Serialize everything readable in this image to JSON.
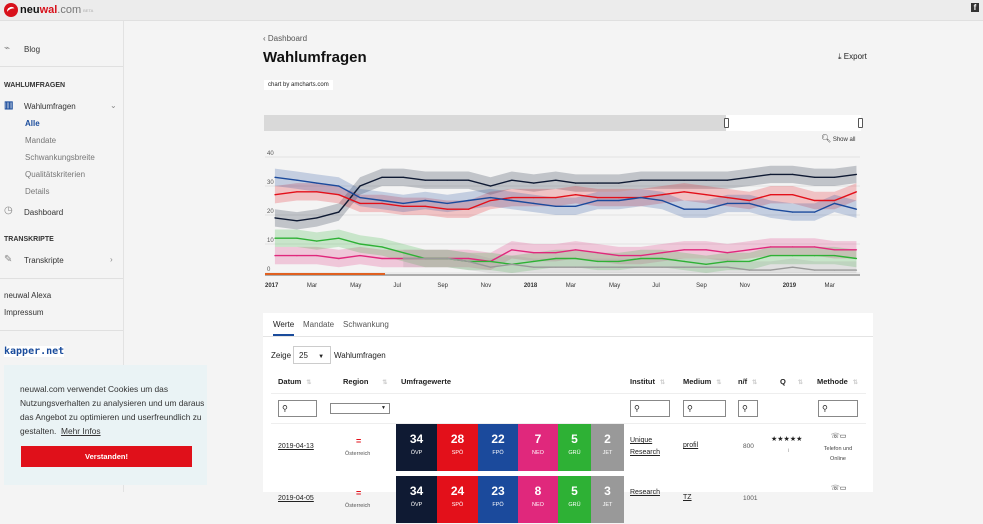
{
  "header": {
    "logo_text_a": "neu",
    "logo_text_b": "wal",
    "logo_text_c": ".com",
    "logo_sup": "BETA",
    "facebook_icon": "f"
  },
  "sidebar": {
    "blog": "Blog",
    "section1": "WAHLUMFRAGEN",
    "wahlumfragen": "Wahlumfragen",
    "subitems": [
      "Alle",
      "Mandate",
      "Schwankungsbreite",
      "Qualitätskriterien",
      "Details"
    ],
    "dashboard": "Dashboard",
    "section2": "TRANSKRIPTE",
    "transkripte": "Transkripte",
    "alexa": "neuwal Alexa",
    "impressum": "Impressum",
    "partner": "kapper.net"
  },
  "main": {
    "breadcrumb": "Dashboard",
    "title": "Wahlumfragen",
    "export": "Export",
    "credit": "chart by amcharts.com",
    "show_all": "Show all"
  },
  "chart_data": {
    "type": "line",
    "ylim": [
      0,
      40
    ],
    "yticks": [
      0,
      10,
      20,
      30,
      40
    ],
    "xticks": [
      "2017",
      "Mar",
      "May",
      "Jul",
      "Sep",
      "Nov",
      "2018",
      "Mar",
      "May",
      "Jul",
      "Sep",
      "Nov",
      "2019",
      "Mar"
    ],
    "x": [
      "2017-01",
      "2017-02",
      "2017-03",
      "2017-04",
      "2017-05",
      "2017-06",
      "2017-07",
      "2017-08",
      "2017-09",
      "2017-10",
      "2017-11",
      "2017-12",
      "2018-01",
      "2018-02",
      "2018-03",
      "2018-04",
      "2018-05",
      "2018-06",
      "2018-07",
      "2018-08",
      "2018-09",
      "2018-10",
      "2018-11",
      "2018-12",
      "2019-01",
      "2019-02",
      "2019-03",
      "2019-04"
    ],
    "series": [
      {
        "party": "ÖVP",
        "color": "#0f1a33",
        "values": [
          19,
          18,
          19,
          21,
          30,
          33,
          33,
          32,
          32,
          32,
          30,
          32,
          31,
          32,
          31,
          31,
          31,
          32,
          32,
          32,
          32,
          32,
          33,
          34,
          34,
          33,
          33,
          34
        ]
      },
      {
        "party": "SPÖ",
        "color": "#e3101a",
        "values": [
          27,
          28,
          28,
          27,
          24,
          24,
          23,
          23,
          22,
          22,
          25,
          26,
          26,
          26,
          27,
          26,
          26,
          26,
          27,
          28,
          27,
          26,
          25,
          27,
          27,
          25,
          25,
          28
        ]
      },
      {
        "party": "FPÖ",
        "color": "#1b4a9c",
        "values": [
          33,
          32,
          31,
          30,
          26,
          25,
          24,
          25,
          24,
          25,
          26,
          25,
          24,
          23,
          23,
          25,
          25,
          26,
          25,
          22,
          22,
          24,
          24,
          22,
          21,
          21,
          24,
          22
        ]
      },
      {
        "party": "NEOS",
        "color": "#e0287c",
        "values": [
          6,
          6,
          6,
          5,
          6,
          5,
          5,
          5,
          5,
          5,
          4,
          8,
          7,
          7,
          8,
          7,
          6,
          6,
          7,
          8,
          8,
          7,
          8,
          9,
          9,
          9,
          8,
          8
        ]
      },
      {
        "party": "Grüne",
        "color": "#2eb135",
        "values": [
          12,
          12,
          11,
          12,
          10,
          9,
          7,
          5,
          5,
          4,
          4,
          3,
          4,
          5,
          5,
          4,
          4,
          5,
          5,
          4,
          3,
          4,
          4,
          6,
          6,
          6,
          6,
          5
        ]
      },
      {
        "party": "JETZT",
        "color": "#999999",
        "values": [
          null,
          null,
          null,
          null,
          null,
          null,
          5,
          5,
          5,
          4,
          2,
          3,
          2,
          2,
          2,
          2,
          2,
          2,
          2,
          2,
          2,
          2,
          1,
          1,
          2,
          1,
          1,
          1
        ]
      }
    ]
  },
  "table": {
    "tabs": [
      "Werte",
      "Mandate",
      "Schwankung"
    ],
    "show_label": "Zeige",
    "show_value": "25",
    "show_suffix": "Wahlumfragen",
    "headers": {
      "datum": "Datum",
      "region": "Region",
      "werte": "Umfragewerte",
      "institut": "Institut",
      "medium": "Medium",
      "nf": "n/f",
      "q": "Q",
      "methode": "Methode"
    },
    "rows": [
      {
        "datum": "2019-04-13",
        "region": "Österreich",
        "values": [
          {
            "v": "34",
            "p": "ÖVP",
            "c": "#0f1a33"
          },
          {
            "v": "28",
            "p": "SPÖ",
            "c": "#e3101a"
          },
          {
            "v": "22",
            "p": "FPÖ",
            "c": "#1b4a9c"
          },
          {
            "v": "7",
            "p": "NEO",
            "c": "#e0287c"
          },
          {
            "v": "5",
            "p": "GRÜ",
            "c": "#2eb135"
          },
          {
            "v": "2",
            "p": "JET",
            "c": "#999999"
          }
        ],
        "institut_a": "Unique",
        "institut_b": "Research",
        "medium": "profil",
        "nf": "800",
        "q": "★★★★★",
        "q_sub": "i",
        "methode_a": "Telefon und",
        "methode_b": "Online"
      },
      {
        "datum": "2019-04-05",
        "region": "Österreich",
        "values": [
          {
            "v": "34",
            "p": "ÖVP",
            "c": "#0f1a33"
          },
          {
            "v": "24",
            "p": "SPÖ",
            "c": "#e3101a"
          },
          {
            "v": "23",
            "p": "FPÖ",
            "c": "#1b4a9c"
          },
          {
            "v": "8",
            "p": "NEO",
            "c": "#e0287c"
          },
          {
            "v": "5",
            "p": "GRÜ",
            "c": "#2eb135"
          },
          {
            "v": "3",
            "p": "JET",
            "c": "#999999"
          }
        ],
        "institut_a": "Research",
        "medium": "TZ",
        "nf": "1001"
      }
    ]
  },
  "cookie": {
    "text": "neuwal.com verwendet Cookies um das Nutzungsverhalten zu analysieren und um daraus das Angebot zu optimieren und userfreundlich zu gestalten.",
    "link": "Mehr Infos",
    "button": "Verstanden!"
  }
}
